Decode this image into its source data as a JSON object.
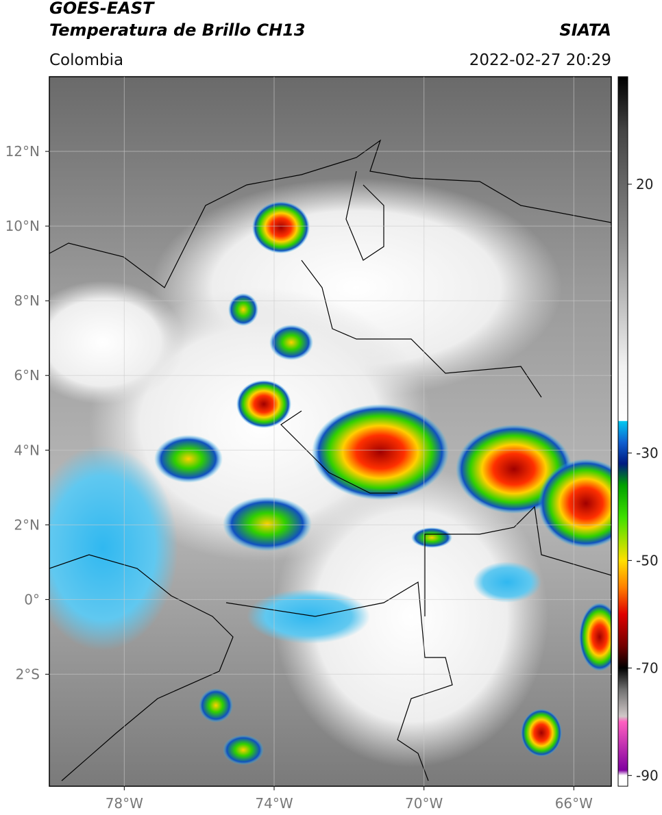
{
  "header": {
    "title": "GOES-EAST",
    "subtitle": "Temperatura de Brillo CH13",
    "source": "SIATA",
    "region": "Colombia",
    "datetime": "2022-02-27 20:29"
  },
  "map": {
    "xlim": [
      -80,
      -65
    ],
    "ylim": [
      -5,
      14
    ],
    "xticks": [
      {
        "value": -78,
        "label": "78°W"
      },
      {
        "value": -74,
        "label": "74°W"
      },
      {
        "value": -70,
        "label": "70°W"
      },
      {
        "value": -66,
        "label": "66°W"
      }
    ],
    "yticks": [
      {
        "value": 12,
        "label": "12°N"
      },
      {
        "value": 10,
        "label": "10°N"
      },
      {
        "value": 8,
        "label": "8°N"
      },
      {
        "value": 6,
        "label": "6°N"
      },
      {
        "value": 4,
        "label": "4°N"
      },
      {
        "value": 2,
        "label": "2°N"
      },
      {
        "value": 0,
        "label": "0°"
      },
      {
        "value": -2,
        "label": "2°S"
      }
    ],
    "grid": true,
    "colorbar": {
      "clim": [
        -92,
        40
      ],
      "ticks": [
        20,
        -30,
        -50,
        -70,
        -90
      ],
      "colormap": [
        [
          40,
          "#000000"
        ],
        [
          30,
          "#444444"
        ],
        [
          10,
          "#8a8a8a"
        ],
        [
          -14,
          "#f2f2f2"
        ],
        [
          -24,
          "#ffffff"
        ],
        [
          -24.1,
          "#00c8f0"
        ],
        [
          -28,
          "#1060d0"
        ],
        [
          -32,
          "#001a80"
        ],
        [
          -36,
          "#00a000"
        ],
        [
          -42,
          "#40e000"
        ],
        [
          -50,
          "#ffe000"
        ],
        [
          -55,
          "#ff8000"
        ],
        [
          -60,
          "#e00000"
        ],
        [
          -66,
          "#700000"
        ],
        [
          -70,
          "#000000"
        ],
        [
          -74,
          "#707070"
        ],
        [
          -79,
          "#d0c8c8"
        ],
        [
          -80,
          "#ff60c0"
        ],
        [
          -89,
          "#8000a0"
        ],
        [
          -90,
          "#ffffff"
        ],
        [
          -92,
          "#ffffff"
        ]
      ]
    }
  }
}
